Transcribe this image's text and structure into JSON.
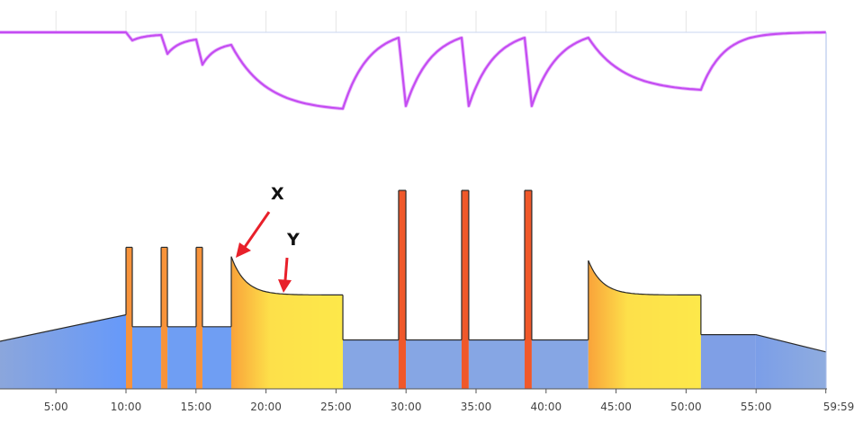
{
  "chart_data": {
    "type": "area",
    "title": "",
    "xlabel": "",
    "ylabel": "",
    "x_unit": "minutes",
    "xlim": [
      1.0,
      59.98
    ],
    "ticks": [
      {
        "t": 5,
        "label": "5:00"
      },
      {
        "t": 10,
        "label": "10:00"
      },
      {
        "t": 15,
        "label": "15:00"
      },
      {
        "t": 20,
        "label": "20:00"
      },
      {
        "t": 25,
        "label": "25:00"
      },
      {
        "t": 30,
        "label": "30:00"
      },
      {
        "t": 35,
        "label": "35:00"
      },
      {
        "t": 40,
        "label": "40:00"
      },
      {
        "t": 45,
        "label": "45:00"
      },
      {
        "t": 50,
        "label": "50:00"
      },
      {
        "t": 55,
        "label": "55:00"
      },
      {
        "t": 59.98,
        "label": "59:59"
      }
    ],
    "power_unit": "% relative intensity",
    "segments": [
      {
        "kind": "ramp",
        "start": 1.0,
        "end": 10.0,
        "from": 36,
        "to": 56,
        "zone": "blue"
      },
      {
        "kind": "interval",
        "start": 10.0,
        "end": 10.45,
        "value": 107,
        "zone": "orange"
      },
      {
        "kind": "steady",
        "start": 10.45,
        "end": 12.51,
        "value": 47,
        "zone": "blue"
      },
      {
        "kind": "interval",
        "start": 12.51,
        "end": 12.96,
        "value": 107,
        "zone": "orange"
      },
      {
        "kind": "steady",
        "start": 12.96,
        "end": 15.01,
        "value": 47,
        "zone": "blue"
      },
      {
        "kind": "interval",
        "start": 15.01,
        "end": 15.46,
        "value": 107,
        "zone": "orange"
      },
      {
        "kind": "steady",
        "start": 15.46,
        "end": 17.52,
        "value": 47,
        "zone": "blue"
      },
      {
        "kind": "decay",
        "start": 17.52,
        "end": 25.49,
        "from": 100,
        "to": 71,
        "zone": "yellow"
      },
      {
        "kind": "steady",
        "start": 25.49,
        "end": 29.47,
        "value": 37,
        "zone": "blue2"
      },
      {
        "kind": "interval",
        "start": 29.47,
        "end": 29.99,
        "value": 150,
        "zone": "red"
      },
      {
        "kind": "steady",
        "start": 29.99,
        "end": 33.97,
        "value": 37,
        "zone": "blue2"
      },
      {
        "kind": "interval",
        "start": 33.97,
        "end": 34.48,
        "value": 150,
        "zone": "red"
      },
      {
        "kind": "steady",
        "start": 34.48,
        "end": 38.47,
        "value": 37,
        "zone": "blue2"
      },
      {
        "kind": "interval",
        "start": 38.47,
        "end": 38.98,
        "value": 150,
        "zone": "red"
      },
      {
        "kind": "steady",
        "start": 38.98,
        "end": 43.02,
        "value": 37,
        "zone": "blue2"
      },
      {
        "kind": "decay",
        "start": 43.02,
        "end": 51.06,
        "from": 97,
        "to": 71,
        "zone": "yellow"
      },
      {
        "kind": "steady",
        "start": 51.06,
        "end": 54.98,
        "value": 41,
        "zone": "blue3"
      },
      {
        "kind": "ramp",
        "start": 54.98,
        "end": 59.98,
        "from": 41,
        "to": 28,
        "zone": "blue3"
      }
    ],
    "balance_series": {
      "name": "balance",
      "color": "#c44cf2",
      "points": [
        [
          1.0,
          100,
          "l"
        ],
        [
          10.0,
          100,
          "l"
        ],
        [
          10.45,
          95.5,
          "l"
        ],
        [
          12.51,
          98.5,
          "e"
        ],
        [
          12.96,
          88,
          "l"
        ],
        [
          15.01,
          96,
          "e"
        ],
        [
          15.46,
          82,
          "l"
        ],
        [
          17.52,
          93,
          "e"
        ],
        [
          25.49,
          57.5,
          "d"
        ],
        [
          29.47,
          97,
          "e"
        ],
        [
          29.99,
          59,
          "l"
        ],
        [
          33.97,
          97,
          "e"
        ],
        [
          34.48,
          59,
          "l"
        ],
        [
          38.47,
          97,
          "e"
        ],
        [
          38.98,
          59,
          "l"
        ],
        [
          43.02,
          97,
          "e"
        ],
        [
          51.06,
          68,
          "d"
        ],
        [
          54.6,
          97,
          "e"
        ],
        [
          59.98,
          100,
          "d"
        ]
      ]
    },
    "annotations": [
      {
        "label": "X",
        "points_to_t": 17.6
      },
      {
        "label": "Y",
        "points_to_t": 21.0
      }
    ],
    "colors": {
      "blue_left": "#8ba6dc",
      "blue_mid": "#6699fa",
      "blue": "#6f9ef3",
      "blue2": "#86a6e4",
      "blue3_left": "#7b9ee8",
      "blue3_right": "#8facdf",
      "orange": "#f8933a",
      "red": "#f0582a",
      "yellow_start": "#f9a33a",
      "yellow_end": "#fde84a",
      "arrow": "#e8202a",
      "outline": "#2a2a2a"
    }
  }
}
